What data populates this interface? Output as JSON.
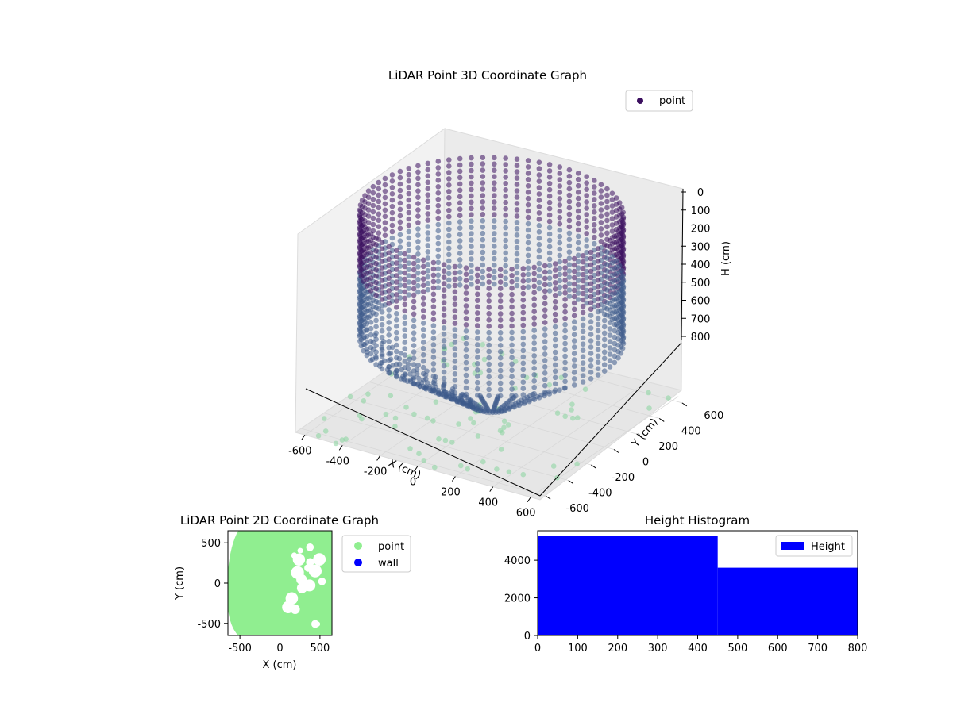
{
  "chart_data": [
    {
      "type": "scatter",
      "projection": "3d",
      "title": "LiDAR Point 3D Coordinate Graph",
      "xlabel": "X (cm)",
      "ylabel": "Y (cm)",
      "zlabel": "H (cm)",
      "xticks": [
        "-600",
        "-400",
        "-200",
        "0",
        "200",
        "400",
        "600"
      ],
      "yticks": [
        "-600",
        "-400",
        "-200",
        "0",
        "200",
        "400",
        "600"
      ],
      "zticks": [
        "0",
        "100",
        "200",
        "300",
        "400",
        "500",
        "600",
        "700",
        "800"
      ],
      "xlim": [
        -650,
        650
      ],
      "ylim": [
        -650,
        650
      ],
      "zlim": [
        0,
        800
      ],
      "zaxis_inverted": true,
      "legend": {
        "labels": [
          "point"
        ],
        "placement": "top-right"
      },
      "colors": {
        "low_height": "#3b0f5f",
        "mid_height": "#3c5a8a",
        "floor": "#8fd6a3"
      },
      "grid": true,
      "series": [
        {
          "name": "point",
          "description_of_shape": "cylindrical wall of points ring radius ~600 cm from height 0 to ~500 cm, dense fan of points toward origin, sparse floor grid"
        }
      ]
    },
    {
      "type": "scatter",
      "title": "LiDAR Point 2D Coordinate Graph",
      "xlabel": "X (cm)",
      "ylabel": "Y (cm)",
      "xticks": [
        "-500",
        "0",
        "500"
      ],
      "yticks": [
        "-500",
        "0",
        "500"
      ],
      "xlim": [
        -650,
        650
      ],
      "ylim": [
        -650,
        650
      ],
      "legend": {
        "labels": [
          "point",
          "wall"
        ],
        "placement": "outside-right"
      },
      "colors": {
        "point": "#90ee90",
        "wall": "#0000ff"
      },
      "grid": false,
      "series": [
        {
          "name": "point"
        },
        {
          "name": "wall"
        }
      ]
    },
    {
      "type": "bar",
      "subtype": "histogram",
      "title": "Height Histogram",
      "xlabel": "",
      "ylabel": "",
      "bins": [
        [
          0,
          450
        ],
        [
          450,
          800
        ]
      ],
      "values": [
        5300,
        3600
      ],
      "xticks": [
        "0",
        "100",
        "200",
        "300",
        "400",
        "500",
        "600",
        "700",
        "800"
      ],
      "yticks": [
        "0",
        "2000",
        "4000"
      ],
      "xlim": [
        0,
        800
      ],
      "ylim": [
        0,
        5565
      ],
      "legend": {
        "labels": [
          "Height"
        ],
        "placement": "top-right"
      },
      "colors": {
        "bar": "#0000ff"
      },
      "grid": false,
      "series": [
        {
          "name": "Height"
        }
      ]
    }
  ]
}
